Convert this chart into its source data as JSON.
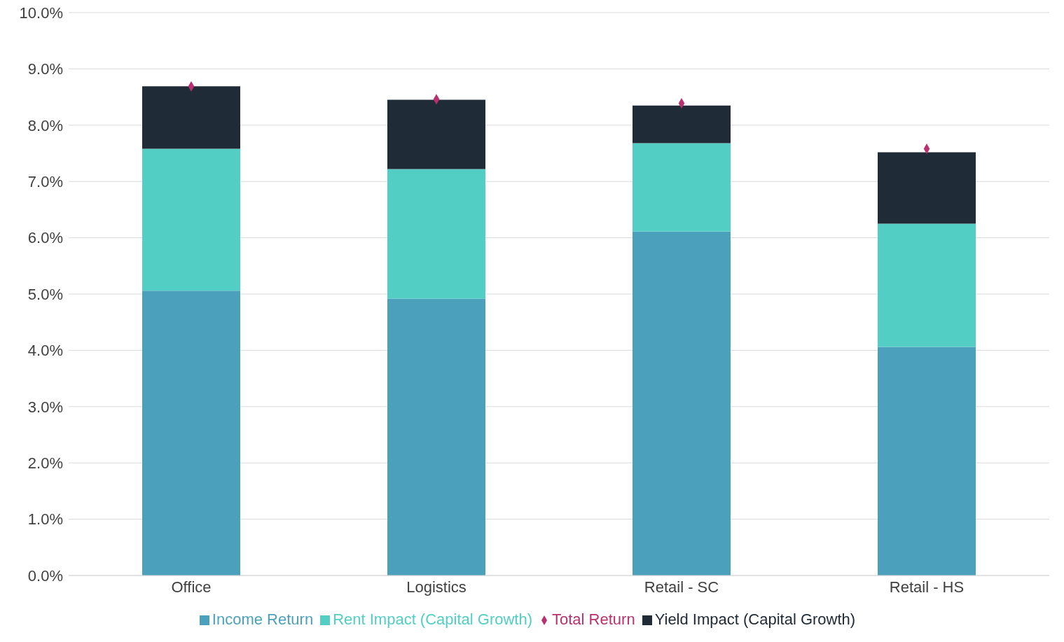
{
  "chart_data": {
    "type": "bar",
    "stacked": true,
    "categories": [
      "Office",
      "Logistics",
      "Retail - SC",
      "Retail - HS"
    ],
    "series": [
      {
        "name": "Income Return",
        "color": "#4ba1bb",
        "values": [
          5.06,
          4.92,
          6.11,
          4.06
        ]
      },
      {
        "name": "Rent Impact (Capital Growth)",
        "color": "#52cec4",
        "values": [
          2.52,
          2.3,
          1.57,
          2.19
        ]
      },
      {
        "name": "Yield Impact (Capital Growth)",
        "color": "#202b38",
        "values": [
          1.11,
          1.23,
          0.67,
          1.27
        ]
      },
      {
        "name": "Total Return",
        "type": "scatter",
        "marker": "diamond",
        "color": "#b9306f",
        "values": [
          8.69,
          8.46,
          8.39,
          7.58
        ]
      }
    ],
    "ylim": [
      0,
      10
    ],
    "yticks": [
      {
        "value": 0,
        "label": "0.0%"
      },
      {
        "value": 1,
        "label": "1.0%"
      },
      {
        "value": 2,
        "label": "2.0%"
      },
      {
        "value": 3,
        "label": "3.0%"
      },
      {
        "value": 4,
        "label": "4.0%"
      },
      {
        "value": 5,
        "label": "5.0%"
      },
      {
        "value": 6,
        "label": "6.0%"
      },
      {
        "value": 7,
        "label": "7.0%"
      },
      {
        "value": 8,
        "label": "8.0%"
      },
      {
        "value": 9,
        "label": "9.0%"
      },
      {
        "value": 10,
        "label": "10.0%"
      }
    ],
    "grid": "y",
    "legend": "bottom"
  }
}
